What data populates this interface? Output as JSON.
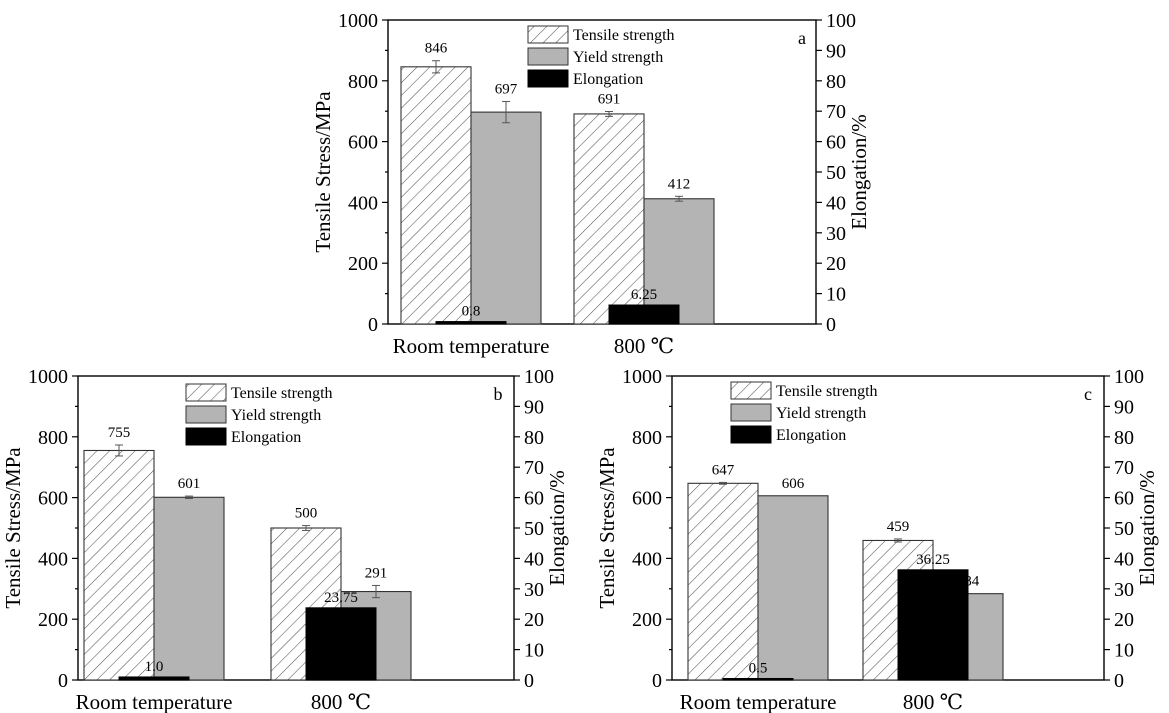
{
  "chart_data": [
    {
      "type": "bar",
      "panel_letter": "a",
      "categories": [
        "Room temperature",
        "800 ℃"
      ],
      "series": [
        {
          "name": "Tensile strength",
          "axis": "left",
          "values": [
            846,
            691
          ],
          "errors": [
            20,
            8
          ],
          "labels": [
            "846",
            "691"
          ]
        },
        {
          "name": "Yield strength",
          "axis": "left",
          "values": [
            697,
            412
          ],
          "errors": [
            35,
            8
          ],
          "labels": [
            "697",
            "412"
          ]
        },
        {
          "name": "Elongation",
          "axis": "right",
          "values": [
            0.8,
            6.25
          ],
          "errors": [
            0,
            0
          ],
          "labels": [
            "0.8",
            "6.25"
          ]
        }
      ],
      "ylabel": "Tensile Stress/MPa",
      "y2label": "Elongation/%",
      "ylim": [
        0,
        1000
      ],
      "y2lim": [
        0,
        100
      ],
      "yticks": [
        "0",
        "200",
        "400",
        "600",
        "800",
        "1000"
      ],
      "y2ticks": [
        "0",
        "10",
        "20",
        "30",
        "40",
        "50",
        "60",
        "70",
        "80",
        "90",
        "100"
      ],
      "legend": "top-center",
      "grid": false
    },
    {
      "type": "bar",
      "panel_letter": "b",
      "categories": [
        "Room temperature",
        "800 ℃"
      ],
      "series": [
        {
          "name": "Tensile strength",
          "axis": "left",
          "values": [
            755,
            500
          ],
          "errors": [
            18,
            8
          ],
          "labels": [
            "755",
            "500"
          ]
        },
        {
          "name": "Yield strength",
          "axis": "left",
          "values": [
            601,
            291
          ],
          "errors": [
            4,
            20
          ],
          "labels": [
            "601",
            "291"
          ]
        },
        {
          "name": "Elongation",
          "axis": "right",
          "values": [
            1.0,
            23.75
          ],
          "errors": [
            0,
            0
          ],
          "labels": [
            "1.0",
            "23.75"
          ]
        }
      ],
      "ylabel": "Tensile Stress/MPa",
      "y2label": "Elongation/%",
      "ylim": [
        0,
        1000
      ],
      "y2lim": [
        0,
        100
      ],
      "yticks": [
        "0",
        "200",
        "400",
        "600",
        "800",
        "1000"
      ],
      "y2ticks": [
        "0",
        "10",
        "20",
        "30",
        "40",
        "50",
        "60",
        "70",
        "80",
        "90",
        "100"
      ],
      "legend": "top-center",
      "grid": false
    },
    {
      "type": "bar",
      "panel_letter": "c",
      "categories": [
        "Room temperature",
        "800 ℃"
      ],
      "series": [
        {
          "name": "Tensile strength",
          "axis": "left",
          "values": [
            647,
            459
          ],
          "errors": [
            3,
            5
          ],
          "labels": [
            "647",
            "459"
          ]
        },
        {
          "name": "Yield strength",
          "axis": "left",
          "values": [
            606,
            284
          ],
          "errors": [
            0,
            0
          ],
          "labels": [
            "606",
            "284"
          ]
        },
        {
          "name": "Elongation",
          "axis": "right",
          "values": [
            0.5,
            36.25
          ],
          "errors": [
            0,
            0
          ],
          "labels": [
            "0.5",
            "36.25"
          ]
        }
      ],
      "ylabel": "Tensile Stress/MPa",
      "y2label": "Elongation/%",
      "ylim": [
        0,
        1000
      ],
      "y2lim": [
        0,
        100
      ],
      "yticks": [
        "0",
        "200",
        "400",
        "600",
        "800",
        "1000"
      ],
      "y2ticks": [
        "0",
        "10",
        "20",
        "30",
        "40",
        "50",
        "60",
        "70",
        "80",
        "90",
        "100"
      ],
      "legend": "top-center",
      "grid": false
    }
  ],
  "colors": {
    "tensile_fill": "#ffffff",
    "hatch_stroke": "#555555",
    "yield_fill": "#b4b4b4",
    "elongation_fill": "#000000"
  }
}
